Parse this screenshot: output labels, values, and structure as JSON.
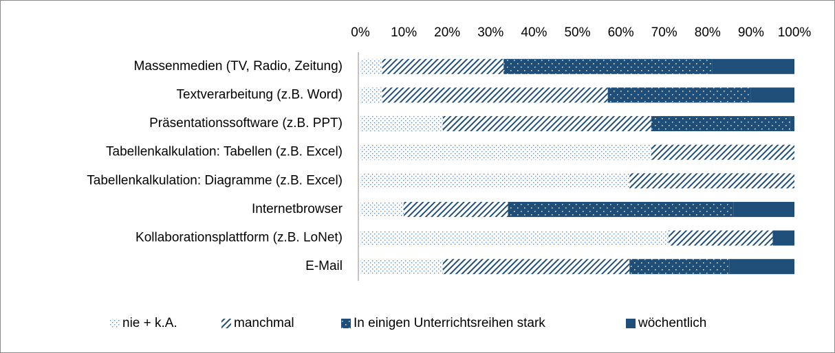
{
  "chart_data": {
    "type": "stacked_barh",
    "categories": [
      "Massenmedien (TV, Radio, Zeitung)",
      "Textverarbeitung (z.B. Word)",
      "Präsentationssoftware (z.B. PPT)",
      "Tabellenkalkulation: Tabellen (z.B. Excel)",
      "Tabellenkalkulation: Diagramme (z.B. Excel)",
      "Internetbrowser",
      "Kollaborationsplattform (z.B. LoNet)",
      "E-Mail"
    ],
    "series": [
      {
        "name": "nie + k.A.",
        "color": "#1f4e79",
        "pattern": "sparse-dots",
        "values": [
          5,
          5,
          19,
          67,
          62,
          10,
          71,
          19
        ]
      },
      {
        "name": "manchmal",
        "color": "#1f4e79",
        "pattern": "hatch",
        "values": [
          28,
          52,
          48,
          33,
          38,
          24,
          24,
          43
        ]
      },
      {
        "name": "In einigen Unterrichtsreihen stark",
        "color": "#1f4e79",
        "pattern": "dark-dots",
        "values": [
          48,
          33,
          32,
          0,
          0,
          52,
          0,
          23
        ]
      },
      {
        "name": "wöchentlich",
        "color": "#1f4e79",
        "pattern": "solid",
        "values": [
          19,
          10,
          1,
          0,
          0,
          14,
          5,
          15
        ]
      }
    ],
    "xlim": [
      0,
      100
    ],
    "xticks": [
      {
        "value": 0,
        "label": "0%"
      },
      {
        "value": 10,
        "label": "10%"
      },
      {
        "value": 20,
        "label": "20%"
      },
      {
        "value": 30,
        "label": "30%"
      },
      {
        "value": 40,
        "label": "40%"
      },
      {
        "value": 50,
        "label": "50%"
      },
      {
        "value": 60,
        "label": "60%"
      },
      {
        "value": 70,
        "label": "70%"
      },
      {
        "value": 80,
        "label": "80%"
      },
      {
        "value": 90,
        "label": "90%"
      },
      {
        "value": 100,
        "label": "100%"
      }
    ],
    "xaxis_position": "top",
    "legend": "bottom"
  }
}
